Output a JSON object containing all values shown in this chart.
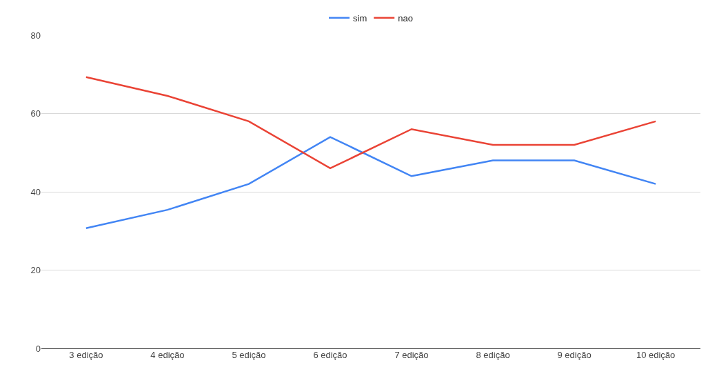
{
  "chart_data": {
    "type": "line",
    "categories": [
      "3 edição",
      "4 edição",
      "5 edição",
      "6 edição",
      "7 edição",
      "8 edição",
      "9 edição",
      "10 edição"
    ],
    "series": [
      {
        "name": "sim",
        "color": "#4285f4",
        "values": [
          30.7,
          35.4,
          42,
          54,
          44,
          48,
          48,
          42
        ]
      },
      {
        "name": "nao",
        "color": "#ea4335",
        "values": [
          69.3,
          64.5,
          58,
          46,
          56,
          52,
          52,
          58
        ]
      }
    ],
    "ylim": [
      0,
      80
    ],
    "yticks": [
      0,
      20,
      40,
      60,
      80
    ],
    "grid": "y",
    "legend": "top",
    "marker": "none",
    "line_style": "solid"
  }
}
